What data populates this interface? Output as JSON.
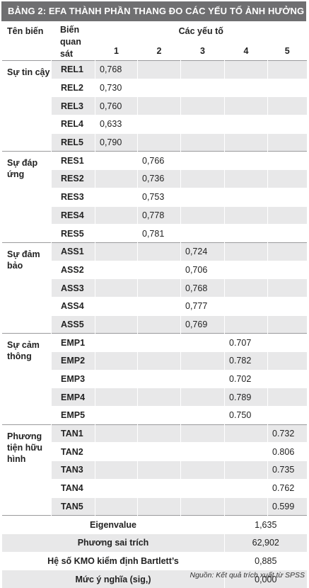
{
  "title": "BẢNG 2: EFA THÀNH PHẦN THANG ĐO CÁC YẾU TỐ ẢNH HƯỞNG",
  "headers": {
    "col1": "Tên biến",
    "col2": "Biến quan sát",
    "factors_group": "Các yếu tố",
    "factors": [
      "1",
      "2",
      "3",
      "4",
      "5"
    ]
  },
  "groups": [
    {
      "name": "Sự tin cậy",
      "rows": [
        {
          "code": "REL1",
          "factor": 1,
          "value": "0,768"
        },
        {
          "code": "REL2",
          "factor": 1,
          "value": "0,730"
        },
        {
          "code": "REL3",
          "factor": 1,
          "value": "0,760"
        },
        {
          "code": "REL4",
          "factor": 1,
          "value": "0,633"
        },
        {
          "code": "REL5",
          "factor": 1,
          "value": "0,790"
        }
      ]
    },
    {
      "name": "Sự đáp ứng",
      "rows": [
        {
          "code": "RES1",
          "factor": 2,
          "value": "0,766"
        },
        {
          "code": "RES2",
          "factor": 2,
          "value": "0,736"
        },
        {
          "code": "RES3",
          "factor": 2,
          "value": "0,753"
        },
        {
          "code": "RES4",
          "factor": 2,
          "value": "0,778"
        },
        {
          "code": "RES5",
          "factor": 2,
          "value": "0,781"
        }
      ]
    },
    {
      "name": "Sự đảm bảo",
      "rows": [
        {
          "code": "ASS1",
          "factor": 3,
          "value": "0,724"
        },
        {
          "code": "ASS2",
          "factor": 3,
          "value": "0,706"
        },
        {
          "code": "ASS3",
          "factor": 3,
          "value": "0,768"
        },
        {
          "code": "ASS4",
          "factor": 3,
          "value": "0,777"
        },
        {
          "code": "ASS5",
          "factor": 3,
          "value": "0,769"
        }
      ]
    },
    {
      "name": "Sự cảm thông",
      "rows": [
        {
          "code": "EMP1",
          "factor": 4,
          "value": "0.707"
        },
        {
          "code": "EMP2",
          "factor": 4,
          "value": "0.782"
        },
        {
          "code": "EMP3",
          "factor": 4,
          "value": "0.702"
        },
        {
          "code": "EMP4",
          "factor": 4,
          "value": "0.789"
        },
        {
          "code": "EMP5",
          "factor": 4,
          "value": "0.750"
        }
      ]
    },
    {
      "name": "Phương tiện hữu hình",
      "rows": [
        {
          "code": "TAN1",
          "factor": 5,
          "value": "0.732"
        },
        {
          "code": "TAN2",
          "factor": 5,
          "value": "0.806"
        },
        {
          "code": "TAN3",
          "factor": 5,
          "value": "0.735"
        },
        {
          "code": "TAN4",
          "factor": 5,
          "value": "0.762"
        },
        {
          "code": "TAN5",
          "factor": 5,
          "value": "0.599"
        }
      ]
    }
  ],
  "summary": [
    {
      "label": "Eigenvalue",
      "value": "1,635"
    },
    {
      "label": "Phương sai trích",
      "value": "62,902"
    },
    {
      "label": "Hệ số KMO kiểm định Bartlett’s",
      "value": "0,885"
    },
    {
      "label": "Mức ý nghĩa (sig,)",
      "value": "0,000"
    }
  ],
  "source": "Nguồn: Kết quả trích xuất từ SPSS"
}
